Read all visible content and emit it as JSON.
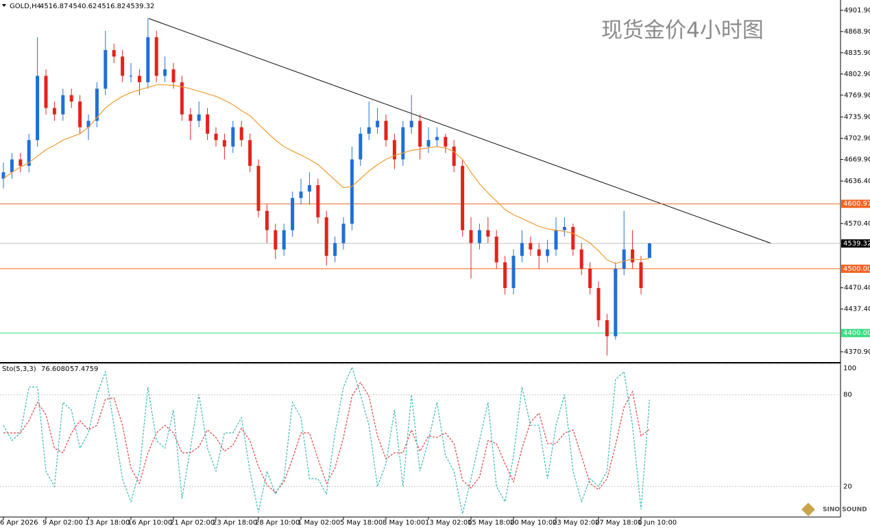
{
  "chart_data": {
    "type": "candlestick",
    "symbol": "GOLD,H4",
    "title": "现货金价4小时图",
    "categories": [
      "6 Apr 2026",
      null,
      null,
      null,
      null,
      "9 Apr 02:00",
      null,
      null,
      null,
      null,
      "13 Apr 18:00",
      null,
      null,
      null,
      null,
      "16 Apr 10:00",
      null,
      null,
      null,
      null,
      "21 Apr 02:00",
      null,
      null,
      null,
      null,
      "23 Apr 18:00",
      null,
      null,
      null,
      null,
      "28 Apr 10:00",
      null,
      null,
      null,
      null,
      "1 May 02:00",
      null,
      null,
      null,
      null,
      "5 May 18:00",
      null,
      null,
      null,
      null,
      "8 May 10:00",
      null,
      null,
      null,
      null,
      "13 May 02:00",
      null,
      null,
      null,
      null,
      "15 May 18:00",
      null,
      null,
      null,
      null,
      "20 May 10:00",
      null,
      null,
      null,
      null,
      "23 May 02:00",
      null,
      null,
      null,
      null,
      "27 May 18:00",
      null,
      null,
      null,
      null,
      "1 Jun 10:00",
      null
    ],
    "ohlc": [
      [
        4640,
        4665,
        4625,
        4650
      ],
      [
        4650,
        4680,
        4640,
        4670
      ],
      [
        4670,
        4680,
        4650,
        4660
      ],
      [
        4660,
        4710,
        4650,
        4700
      ],
      [
        4700,
        4860,
        4690,
        4800
      ],
      [
        4800,
        4810,
        4740,
        4750
      ],
      [
        4750,
        4760,
        4730,
        4740
      ],
      [
        4740,
        4780,
        4730,
        4770
      ],
      [
        4770,
        4780,
        4750,
        4760
      ],
      [
        4760,
        4770,
        4710,
        4720
      ],
      [
        4720,
        4740,
        4700,
        4730
      ],
      [
        4730,
        4790,
        4720,
        4780
      ],
      [
        4780,
        4870,
        4770,
        4840
      ],
      [
        4840,
        4850,
        4820,
        4830
      ],
      [
        4830,
        4840,
        4790,
        4800
      ],
      [
        4800,
        4820,
        4790,
        4800
      ],
      [
        4800,
        4810,
        4770,
        4790
      ],
      [
        4790,
        4890,
        4780,
        4860
      ],
      [
        4860,
        4870,
        4790,
        4800
      ],
      [
        4800,
        4830,
        4790,
        4810
      ],
      [
        4810,
        4820,
        4780,
        4790
      ],
      [
        4790,
        4800,
        4730,
        4740
      ],
      [
        4740,
        4750,
        4700,
        4730
      ],
      [
        4730,
        4760,
        4720,
        4740
      ],
      [
        4740,
        4750,
        4700,
        4710
      ],
      [
        4710,
        4720,
        4690,
        4700
      ],
      [
        4700,
        4710,
        4670,
        4690
      ],
      [
        4690,
        4730,
        4680,
        4720
      ],
      [
        4720,
        4730,
        4690,
        4700
      ],
      [
        4700,
        4710,
        4650,
        4660
      ],
      [
        4660,
        4670,
        4580,
        4590
      ],
      [
        4590,
        4600,
        4540,
        4560
      ],
      [
        4560,
        4570,
        4515,
        4530
      ],
      [
        4530,
        4570,
        4520,
        4560
      ],
      [
        4560,
        4620,
        4550,
        4610
      ],
      [
        4610,
        4640,
        4600,
        4620
      ],
      [
        4620,
        4650,
        4600,
        4630
      ],
      [
        4630,
        4640,
        4570,
        4580
      ],
      [
        4580,
        4590,
        4505,
        4520
      ],
      [
        4520,
        4550,
        4510,
        4540
      ],
      [
        4540,
        4580,
        4530,
        4570
      ],
      [
        4570,
        4690,
        4560,
        4670
      ],
      [
        4670,
        4720,
        4660,
        4710
      ],
      [
        4710,
        4760,
        4700,
        4720
      ],
      [
        4720,
        4750,
        4710,
        4730
      ],
      [
        4730,
        4740,
        4690,
        4700
      ],
      [
        4700,
        4710,
        4655,
        4670
      ],
      [
        4670,
        4730,
        4660,
        4720
      ],
      [
        4720,
        4770,
        4710,
        4730
      ],
      [
        4730,
        4740,
        4670,
        4690
      ],
      [
        4690,
        4720,
        4680,
        4700
      ],
      [
        4700,
        4720,
        4690,
        4705
      ],
      [
        4705,
        4710,
        4680,
        4690
      ],
      [
        4690,
        4700,
        4650,
        4660
      ],
      [
        4660,
        4670,
        4550,
        4560
      ],
      [
        4560,
        4580,
        4485,
        4540
      ],
      [
        4540,
        4570,
        4530,
        4560
      ],
      [
        4560,
        4580,
        4540,
        4550
      ],
      [
        4550,
        4560,
        4500,
        4510
      ],
      [
        4510,
        4520,
        4460,
        4470
      ],
      [
        4470,
        4530,
        4460,
        4520
      ],
      [
        4520,
        4560,
        4510,
        4540
      ],
      [
        4540,
        4550,
        4520,
        4530
      ],
      [
        4530,
        4540,
        4500,
        4520
      ],
      [
        4520,
        4545,
        4510,
        4530
      ],
      [
        4530,
        4580,
        4520,
        4560
      ],
      [
        4560,
        4580,
        4550,
        4565
      ],
      [
        4565,
        4570,
        4520,
        4530
      ],
      [
        4530,
        4540,
        4490,
        4500
      ],
      [
        4500,
        4510,
        4460,
        4470
      ],
      [
        4470,
        4480,
        4410,
        4420
      ],
      [
        4420,
        4430,
        4365,
        4395
      ],
      [
        4395,
        4510,
        4390,
        4500
      ],
      [
        4500,
        4590,
        4490,
        4530
      ],
      [
        4530,
        4560,
        4500,
        4510
      ],
      [
        4510,
        4520,
        4460,
        4470
      ],
      [
        4516.87,
        4540.62,
        4516.82,
        4539.32
      ]
    ],
    "colors": {
      "up": "#1f6fd8",
      "down": "#e3231c"
    },
    "ma": {
      "color": "#f29a2e",
      "values": [
        4640,
        4650,
        4658,
        4665,
        4675,
        4685,
        4692,
        4700,
        4705,
        4710,
        4720,
        4735,
        4750,
        4760,
        4768,
        4774,
        4778,
        4782,
        4786,
        4786,
        4785,
        4783,
        4780,
        4776,
        4772,
        4768,
        4762,
        4755,
        4746,
        4738,
        4725,
        4712,
        4700,
        4690,
        4683,
        4677,
        4670,
        4662,
        4650,
        4638,
        4626,
        4628,
        4640,
        4652,
        4662,
        4670,
        4676,
        4680,
        4684,
        4686,
        4688,
        4690,
        4688,
        4682,
        4670,
        4650,
        4632,
        4618,
        4605,
        4592,
        4584,
        4578,
        4572,
        4566,
        4562,
        4560,
        4558,
        4555,
        4548,
        4540,
        4528,
        4514,
        4508,
        4512,
        4515,
        4514,
        4516
      ]
    },
    "ylim": [
      4354.9,
      4917.9
    ],
    "yticks": [
      {
        "value": 4901.9,
        "label": "4901.90"
      },
      {
        "value": 4868.9,
        "label": "4868.90"
      },
      {
        "value": 4835.9,
        "label": "4835.90"
      },
      {
        "value": 4802.9,
        "label": "4802.90"
      },
      {
        "value": 4769.9,
        "label": "4769.90"
      },
      {
        "value": 4735.9,
        "label": "4735.90"
      },
      {
        "value": 4702.9,
        "label": "4702.90"
      },
      {
        "value": 4669.9,
        "label": "4669.90"
      },
      {
        "value": 4636.4,
        "label": "4636.40"
      },
      {
        "value": 4570.4,
        "label": "4570.40"
      },
      {
        "value": 4470.4,
        "label": "4470.40"
      },
      {
        "value": 4437.4,
        "label": "4437.40"
      },
      {
        "value": 4370.9,
        "label": "4370.90"
      }
    ],
    "levels": [
      {
        "value": 4600.97,
        "color": "#f26522"
      },
      {
        "value": 4500,
        "label": "4500.00",
        "color": "#f26522"
      },
      {
        "value": 4400,
        "label": "4400.00",
        "color": "#3ddc84"
      }
    ],
    "stochastic": {
      "label": "Sto(5,3,3)",
      "readout": [
        "76.6080",
        "57.4759"
      ],
      "k": {
        "color": "#35b6b6",
        "values": [
          60,
          50,
          55,
          85,
          85,
          30,
          20,
          75,
          70,
          45,
          55,
          80,
          95,
          60,
          25,
          10,
          30,
          85,
          50,
          45,
          70,
          12,
          45,
          80,
          45,
          30,
          55,
          55,
          65,
          30,
          3,
          30,
          15,
          25,
          75,
          65,
          25,
          25,
          15,
          55,
          85,
          98,
          80,
          60,
          20,
          35,
          70,
          20,
          80,
          30,
          50,
          75,
          40,
          30,
          2,
          25,
          50,
          75,
          20,
          10,
          40,
          85,
          60,
          60,
          25,
          60,
          80,
          30,
          10,
          25,
          20,
          30,
          90,
          95,
          60,
          5,
          76.608
        ]
      },
      "d": {
        "color": "#e03c3c",
        "values": [
          55,
          55,
          55,
          63,
          75,
          67,
          45,
          42,
          55,
          63,
          57,
          60,
          77,
          78,
          60,
          32,
          22,
          42,
          55,
          60,
          55,
          42,
          42,
          46,
          57,
          52,
          43,
          47,
          58,
          50,
          33,
          21,
          16,
          23,
          38,
          55,
          55,
          38,
          22,
          32,
          52,
          79,
          88,
          79,
          53,
          38,
          42,
          42,
          57,
          43,
          53,
          52,
          55,
          48,
          24,
          19,
          26,
          50,
          48,
          35,
          23,
          45,
          62,
          68,
          48,
          48,
          55,
          57,
          40,
          22,
          18,
          25,
          47,
          72,
          82,
          53,
          57.4759
        ]
      },
      "ylim": [
        0,
        100
      ],
      "yticks": [
        20,
        80,
        100
      ]
    },
    "logo": "SINO SOUND"
  }
}
